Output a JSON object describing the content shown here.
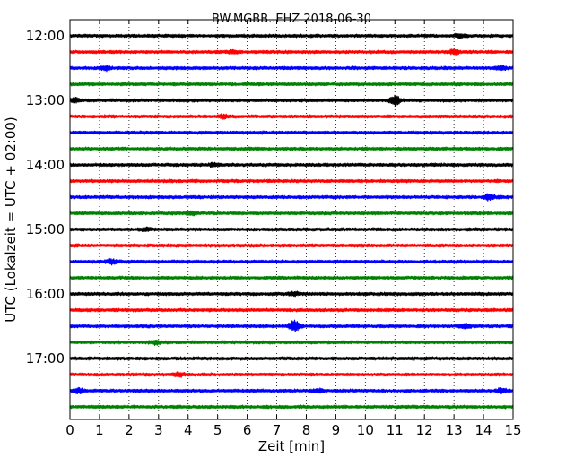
{
  "chart_data": {
    "type": "line",
    "title": "BW.MGBB..EHZ 2018-06-30",
    "xlabel": "Zeit  [min]",
    "ylabel": "UTC (Lokalzeit = UTC + 02:00)",
    "xlim": [
      0,
      15
    ],
    "x_ticks": [
      "0",
      "1",
      "2",
      "3",
      "4",
      "5",
      "6",
      "7",
      "8",
      "9",
      "10",
      "11",
      "12",
      "13",
      "14",
      "15"
    ],
    "y_tick_labels": [
      "12:00",
      "13:00",
      "14:00",
      "15:00",
      "16:00",
      "17:00"
    ],
    "grid": "vertical dotted",
    "trace_colors": [
      "#000000",
      "#ff0000",
      "#0000ff",
      "#008000"
    ],
    "traces": [
      {
        "start": "12:00"
      },
      {
        "start": "12:15"
      },
      {
        "start": "12:30"
      },
      {
        "start": "12:45"
      },
      {
        "start": "13:00"
      },
      {
        "start": "13:15"
      },
      {
        "start": "13:30"
      },
      {
        "start": "13:45"
      },
      {
        "start": "14:00"
      },
      {
        "start": "14:15"
      },
      {
        "start": "14:30"
      },
      {
        "start": "14:45"
      },
      {
        "start": "15:00"
      },
      {
        "start": "15:15"
      },
      {
        "start": "15:30"
      },
      {
        "start": "15:45"
      },
      {
        "start": "16:00"
      },
      {
        "start": "16:15"
      },
      {
        "start": "16:30"
      },
      {
        "start": "16:45"
      },
      {
        "start": "17:00"
      },
      {
        "start": "17:15"
      },
      {
        "start": "17:30"
      },
      {
        "start": "17:45"
      }
    ],
    "events": [
      {
        "trace": 0,
        "minute": 13.2,
        "amp": 1.6
      },
      {
        "trace": 1,
        "minute": 5.5,
        "amp": 1.6
      },
      {
        "trace": 1,
        "minute": 13.0,
        "amp": 1.8
      },
      {
        "trace": 2,
        "minute": 1.2,
        "amp": 2.2
      },
      {
        "trace": 2,
        "minute": 14.6,
        "amp": 1.6
      },
      {
        "trace": 4,
        "minute": 0.15,
        "amp": 2.0
      },
      {
        "trace": 4,
        "minute": 11.0,
        "amp": 4.5
      },
      {
        "trace": 5,
        "minute": 5.2,
        "amp": 1.5
      },
      {
        "trace": 8,
        "minute": 4.9,
        "amp": 1.4
      },
      {
        "trace": 10,
        "minute": 14.2,
        "amp": 2.8
      },
      {
        "trace": 11,
        "minute": 4.1,
        "amp": 1.5
      },
      {
        "trace": 12,
        "minute": 2.6,
        "amp": 1.4
      },
      {
        "trace": 14,
        "minute": 1.4,
        "amp": 2.4
      },
      {
        "trace": 16,
        "minute": 7.6,
        "amp": 1.4
      },
      {
        "trace": 18,
        "minute": 7.6,
        "amp": 5.5
      },
      {
        "trace": 18,
        "minute": 13.4,
        "amp": 1.8
      },
      {
        "trace": 19,
        "minute": 2.9,
        "amp": 1.6
      },
      {
        "trace": 21,
        "minute": 3.7,
        "amp": 1.8
      },
      {
        "trace": 22,
        "minute": 0.3,
        "amp": 2.2
      },
      {
        "trace": 22,
        "minute": 8.4,
        "amp": 1.6
      },
      {
        "trace": 22,
        "minute": 14.6,
        "amp": 2.0
      }
    ]
  }
}
